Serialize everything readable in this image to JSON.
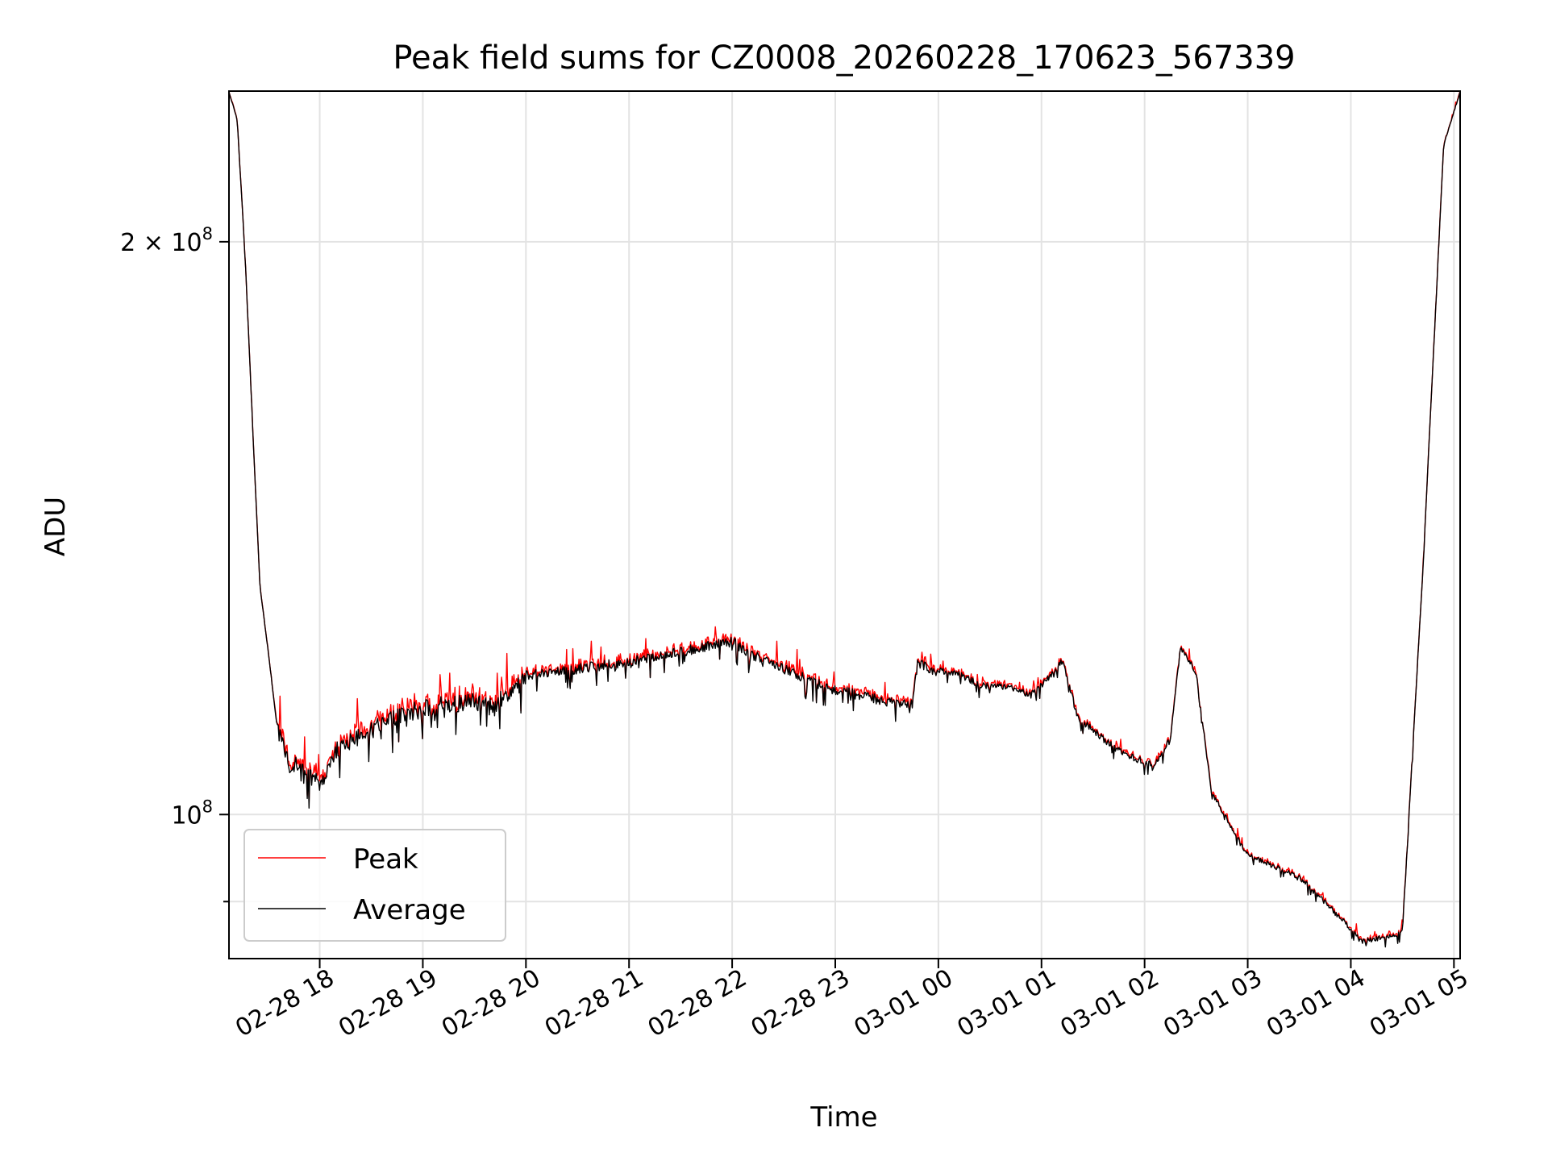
{
  "chart_data": {
    "type": "line",
    "title": "Peak field sums for CZ0008_20260228_170623_567339",
    "xlabel": "Time",
    "ylabel": "ADU",
    "y_scale": "log",
    "ylim": [
      84000000,
      240000000
    ],
    "xlim_hours_from_0228_1700": [
      0.12,
      12.06
    ],
    "grid": true,
    "legend": {
      "position": "lower-left",
      "entries": [
        {
          "name": "Peak",
          "color": "#ff0000"
        },
        {
          "name": "Average",
          "color": "#000000"
        }
      ]
    },
    "x_ticks": [
      {
        "label": "02-28 18",
        "hour": 1
      },
      {
        "label": "02-28 19",
        "hour": 2
      },
      {
        "label": "02-28 20",
        "hour": 3
      },
      {
        "label": "02-28 21",
        "hour": 4
      },
      {
        "label": "02-28 22",
        "hour": 5
      },
      {
        "label": "02-28 23",
        "hour": 6
      },
      {
        "label": "03-01 00",
        "hour": 7
      },
      {
        "label": "03-01 01",
        "hour": 8
      },
      {
        "label": "03-01 02",
        "hour": 9
      },
      {
        "label": "03-01 03",
        "hour": 10
      },
      {
        "label": "03-01 04",
        "hour": 11
      },
      {
        "label": "03-01 05",
        "hour": 12
      }
    ],
    "y_major_ticks": [
      {
        "base": "10",
        "exp": "8",
        "mult": "",
        "value": 100000000
      },
      {
        "base": "10",
        "exp": "8",
        "mult": "2 × ",
        "value": 200000000
      }
    ],
    "y_minor_ticks": [
      90000000
    ],
    "series_average_key_points": {
      "hours_from_0228_1700": [
        0.12,
        0.2,
        0.28,
        0.35,
        0.42,
        0.5,
        0.58,
        0.65,
        0.7,
        0.78,
        0.85,
        1.0,
        1.2,
        1.5,
        1.8,
        2.0,
        2.5,
        2.7,
        2.8,
        3.0,
        3.5,
        4.0,
        4.5,
        5.0,
        5.2,
        5.5,
        5.8,
        6.0,
        6.3,
        6.6,
        6.75,
        6.8,
        6.9,
        7.2,
        7.4,
        7.7,
        7.9,
        8.1,
        8.2,
        8.35,
        8.6,
        8.8,
        9.0,
        9.1,
        9.25,
        9.35,
        9.5,
        9.65,
        10.0,
        10.5,
        10.9,
        11.1,
        11.35,
        11.5,
        11.7,
        11.9,
        12.06
      ],
      "adu": [
        240000000,
        232000000,
        195000000,
        160000000,
        132000000,
        122000000,
        112000000,
        110000000,
        107000000,
        108000000,
        106000000,
        105000000,
        110000000,
        112000000,
        114000000,
        115000000,
        116000000,
        115000000,
        117000000,
        119000000,
        120000000,
        121000000,
        122500000,
        124000000,
        122000000,
        120000000,
        118000000,
        117000000,
        116000000,
        115000000,
        115000000,
        121000000,
        120000000,
        119000000,
        117500000,
        117000000,
        116000000,
        119000000,
        121000000,
        113000000,
        110000000,
        108000000,
        107000000,
        106500000,
        110000000,
        123000000,
        119000000,
        103000000,
        95500000,
        93000000,
        88500000,
        86000000,
        86500000,
        87000000,
        135000000,
        225000000,
        240000000
      ]
    },
    "series_peak": "Peak follows Average with positive spikes up to ~+4%"
  }
}
